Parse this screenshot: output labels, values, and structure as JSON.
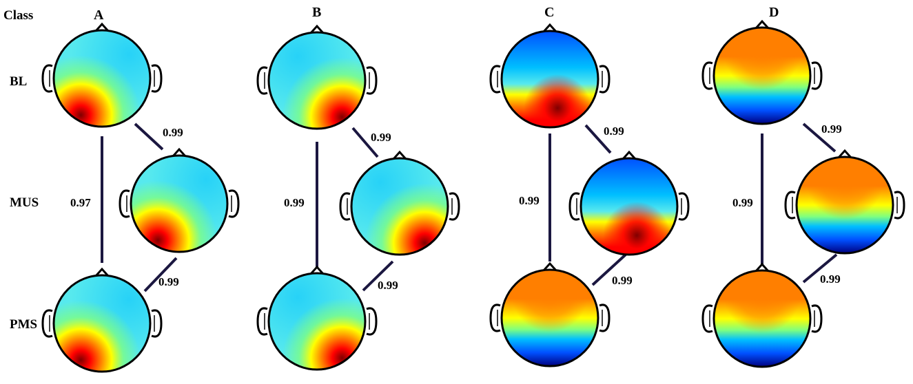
{
  "figure": {
    "class_header": "Class",
    "rows": [
      {
        "key": "bl",
        "label": "BL"
      },
      {
        "key": "mus",
        "label": "MUS"
      },
      {
        "key": "pms",
        "label": "PMS"
      }
    ],
    "classes": [
      {
        "key": "A",
        "label": "A",
        "maps": [
          {
            "row": "BL",
            "pattern": "hot-left-posterior"
          },
          {
            "row": "MUS",
            "pattern": "hot-left-posterior"
          },
          {
            "row": "PMS",
            "pattern": "hot-left-posterior"
          }
        ],
        "correlations": {
          "bl_mus": "0.99",
          "bl_pms": "0.97",
          "mus_pms": "0.99"
        }
      },
      {
        "key": "B",
        "label": "B",
        "maps": [
          {
            "row": "BL",
            "pattern": "hot-right-posterior"
          },
          {
            "row": "MUS",
            "pattern": "hot-right-posterior"
          },
          {
            "row": "PMS",
            "pattern": "hot-right-posterior"
          }
        ],
        "correlations": {
          "bl_mus": "0.99",
          "bl_pms": "0.99",
          "mus_pms": "0.99"
        }
      },
      {
        "key": "C",
        "label": "C",
        "maps": [
          {
            "row": "BL",
            "pattern": "cold-frontal-hot-posterior"
          },
          {
            "row": "MUS",
            "pattern": "cold-frontal-hot-posterior"
          },
          {
            "row": "PMS",
            "pattern": "hot-frontal-cold-posterior"
          }
        ],
        "correlations": {
          "bl_mus": "0.99",
          "bl_pms": "0.99",
          "mus_pms": "0.99"
        }
      },
      {
        "key": "D",
        "label": "D",
        "maps": [
          {
            "row": "BL",
            "pattern": "hot-frontal-cold-posterior"
          },
          {
            "row": "MUS",
            "pattern": "hot-frontal-cold-posterior"
          },
          {
            "row": "PMS",
            "pattern": "hot-frontal-cold-posterior"
          }
        ],
        "correlations": {
          "bl_mus": "0.99",
          "bl_pms": "0.99",
          "mus_pms": "0.99"
        }
      }
    ],
    "colors": {
      "colormap": [
        "#00007f",
        "#0050ff",
        "#00bfff",
        "#57e9ee",
        "#7fff7f",
        "#ffff00",
        "#ff7f00",
        "#ff0000",
        "#7f0000"
      ],
      "outline": "#000000",
      "connector": "#1b1740"
    }
  }
}
